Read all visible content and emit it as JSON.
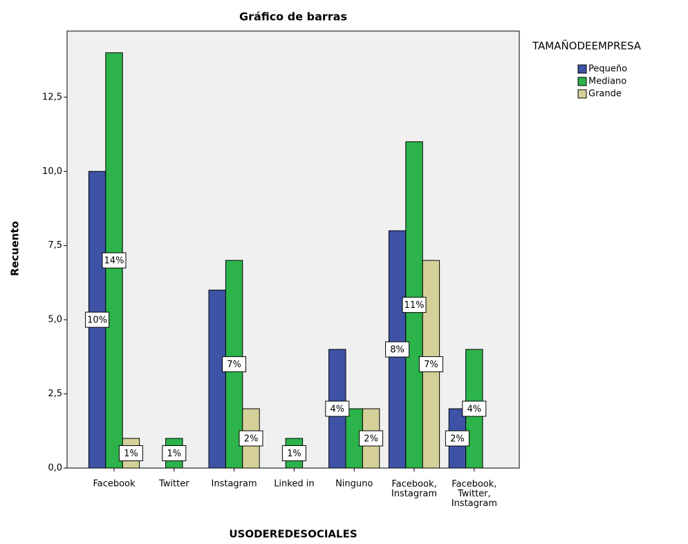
{
  "chart_data": {
    "type": "bar",
    "title": "Gráfico de barras",
    "x_label": "USODEREDESOCIALES",
    "y_label": "Recuento",
    "legend_title": "TAMAÑODEEMPRESA",
    "categories": [
      "Facebook",
      "Twitter",
      "Instagram",
      "Linked in",
      "Ninguno",
      "Facebook, Instagram",
      "Facebook, Twitter, Instagram"
    ],
    "series": [
      {
        "name": "Pequeño",
        "color": "#3e53a6",
        "values": [
          10,
          null,
          6,
          null,
          4,
          8,
          2
        ],
        "value_labels": [
          "10%",
          null,
          null,
          null,
          "4%",
          "8%",
          "2%"
        ]
      },
      {
        "name": "Mediano",
        "color": "#2cb34a",
        "values": [
          14,
          1,
          7,
          1,
          2,
          11,
          4
        ],
        "value_labels": [
          "14%",
          "1%",
          "7%",
          "1%",
          null,
          "11%",
          "4%"
        ]
      },
      {
        "name": "Grande",
        "color": "#d5cf99",
        "values": [
          1,
          null,
          2,
          null,
          2,
          7,
          null
        ],
        "value_labels": [
          "1%",
          null,
          "2%",
          null,
          "2%",
          "7%",
          null
        ]
      }
    ],
    "ylim": [
      0,
      14.73
    ],
    "yticks": [
      {
        "value": 0,
        "label": "0,0"
      },
      {
        "value": 2.5,
        "label": "2,5"
      },
      {
        "value": 5,
        "label": "5,0"
      },
      {
        "value": 7.5,
        "label": "7,5"
      },
      {
        "value": 10,
        "label": "10,0"
      },
      {
        "value": 12.5,
        "label": "12,5"
      }
    ],
    "legend_position": "right"
  }
}
